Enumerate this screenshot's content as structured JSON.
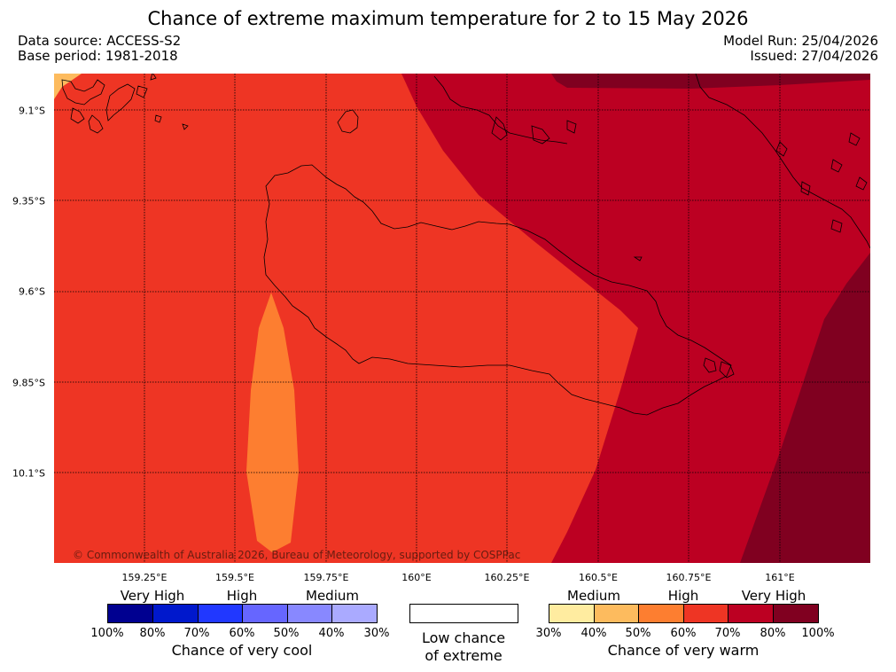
{
  "header": {
    "title": "Chance of extreme maximum temperature for 2 to 15 May 2026",
    "data_source": "Data source: ACCESS-S2",
    "base_period": "Base period: 1981-2018",
    "model_run": "Model Run: 25/04/2026",
    "issued": "Issued: 27/04/2026"
  },
  "map": {
    "longitude_labels": [
      "159.25°E",
      "159.5°E",
      "159.75°E",
      "160°E",
      "160.25°E",
      "160.5°E",
      "160.75°E",
      "161°E"
    ],
    "latitude_labels": [
      "9.1°S",
      "9.35°S",
      "9.6°S",
      "9.85°S",
      "10.1°S"
    ],
    "copyright": "© Commonwealth of Australia 2026, Bureau of Meteorology, supported by COSPPac",
    "colors": {
      "range_40_50": "#fdbb5e",
      "range_50_60": "#fd7e30",
      "range_60_70": "#ee3524",
      "range_70_80": "#bc0022",
      "range_80_100": "#800020"
    }
  },
  "legend": {
    "cool": {
      "categories": [
        "Very High",
        "High",
        "Medium"
      ],
      "percentages": [
        "100%",
        "80%",
        "70%",
        "60%",
        "50%",
        "40%",
        "30%"
      ],
      "colors": [
        "#000090",
        "#0018cc",
        "#2138ff",
        "#6666ff",
        "#8888ff",
        "#aaaaff"
      ],
      "title": "Chance of very cool"
    },
    "low": {
      "line1": "Low chance",
      "line2": "of extreme"
    },
    "warm": {
      "categories": [
        "Medium",
        "High",
        "Very High"
      ],
      "percentages": [
        "30%",
        "40%",
        "50%",
        "60%",
        "70%",
        "80%",
        "100%"
      ],
      "colors": [
        "#ffeca0",
        "#fdbb5e",
        "#fd7e30",
        "#ee3524",
        "#bc0022",
        "#800020"
      ],
      "title": "Chance of very warm"
    }
  }
}
